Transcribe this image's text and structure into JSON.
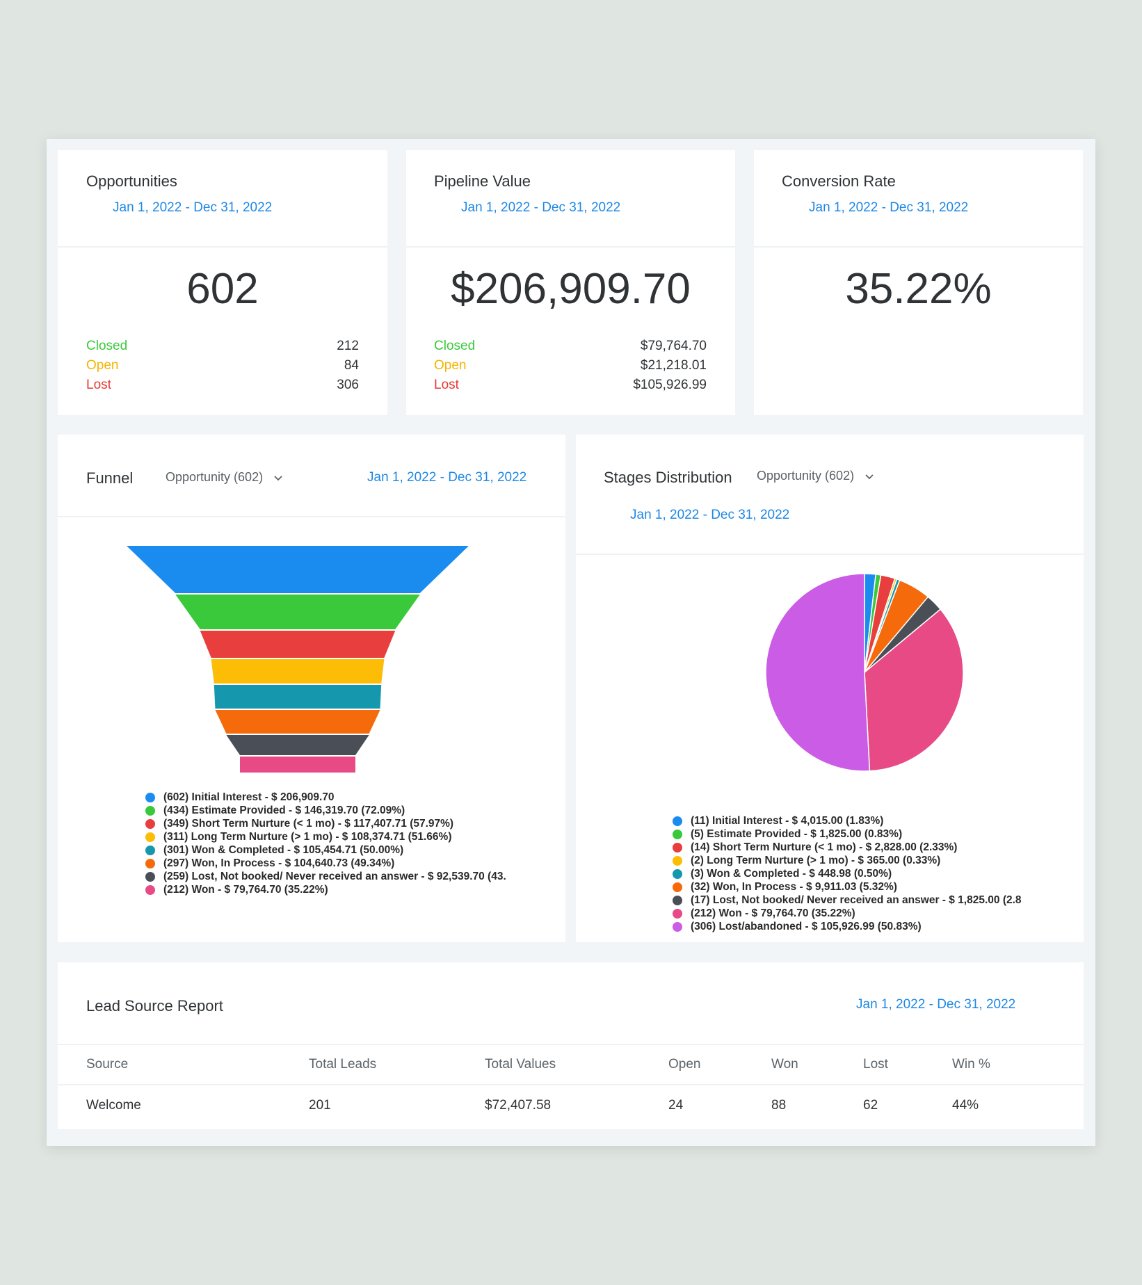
{
  "cards": {
    "opportunities": {
      "title": "Opportunities",
      "date": "Jan 1, 2022 - Dec 31, 2022",
      "value": "602",
      "closed_label": "Closed",
      "closed_value": "212",
      "open_label": "Open",
      "open_value": "84",
      "lost_label": "Lost",
      "lost_value": "306"
    },
    "pipeline": {
      "title": "Pipeline Value",
      "date": "Jan 1, 2022 - Dec 31, 2022",
      "value": "$206,909.70",
      "closed_label": "Closed",
      "closed_value": "$79,764.70",
      "open_label": "Open",
      "open_value": "$21,218.01",
      "lost_label": "Lost",
      "lost_value": "$105,926.99"
    },
    "conversion": {
      "title": "Conversion Rate",
      "date": "Jan 1, 2022 - Dec 31, 2022",
      "value": "35.22%"
    }
  },
  "funnel": {
    "title": "Funnel",
    "dropdown": "Opportunity (602)",
    "date": "Jan 1, 2022 - Dec 31, 2022",
    "legend": [
      "(602) Initial Interest - $ 206,909.70",
      "(434) Estimate Provided - $ 146,319.70 (72.09%)",
      "(349) Short Term Nurture (< 1 mo) - $ 117,407.71 (57.97%)",
      "(311) Long Term Nurture (> 1 mo) - $ 108,374.71 (51.66%)",
      "(301) Won & Completed - $ 105,454.71 (50.00%)",
      "(297) Won, In Process - $ 104,640.73 (49.34%)",
      "(259) Lost, Not booked/ Never received an answer - $ 92,539.70 (43.",
      "(212) Won - $ 79,764.70 (35.22%)"
    ]
  },
  "stages": {
    "title": "Stages Distribution",
    "dropdown": "Opportunity (602)",
    "date": "Jan 1, 2022 - Dec 31, 2022",
    "legend": [
      "(11) Initial Interest - $ 4,015.00 (1.83%)",
      "(5) Estimate Provided - $ 1,825.00 (0.83%)",
      "(14) Short Term Nurture (< 1 mo) - $ 2,828.00 (2.33%)",
      "(2) Long Term Nurture (> 1 mo) - $ 365.00 (0.33%)",
      "(3) Won & Completed - $ 448.98 (0.50%)",
      "(32) Won, In Process - $ 9,911.03 (5.32%)",
      "(17) Lost, Not booked/ Never received an answer - $ 1,825.00 (2.8",
      "(212) Won - $ 79,764.70 (35.22%)",
      "(306) Lost/abandoned - $ 105,926.99 (50.83%)"
    ]
  },
  "chart_data": [
    {
      "type": "funnel",
      "categories": [
        "Initial Interest",
        "Estimate Provided",
        "Short Term Nurture (< 1 mo)",
        "Long Term Nurture (> 1 mo)",
        "Won & Completed",
        "Won, In Process",
        "Lost, Not booked/ Never received an answer",
        "Won"
      ],
      "values": [
        602,
        434,
        349,
        311,
        301,
        297,
        259,
        212
      ],
      "colors": [
        "#1a8cf0",
        "#39c93b",
        "#e83e3e",
        "#fdbd07",
        "#1597ae",
        "#f56b0c",
        "#4a4f57",
        "#e84a85"
      ]
    },
    {
      "type": "pie",
      "categories": [
        "Initial Interest",
        "Estimate Provided",
        "Short Term Nurture (< 1 mo)",
        "Long Term Nurture (> 1 mo)",
        "Won & Completed",
        "Won, In Process",
        "Lost, Not booked/ Never received an answer",
        "Won",
        "Lost/abandoned"
      ],
      "values": [
        11,
        5,
        14,
        2,
        3,
        32,
        17,
        212,
        306
      ],
      "colors": [
        "#1a8cf0",
        "#39c93b",
        "#e83e3e",
        "#fdbd07",
        "#1597ae",
        "#f56b0c",
        "#4a4f57",
        "#e84a85",
        "#cb5ce6"
      ]
    }
  ],
  "lead_source": {
    "title": "Lead Source Report",
    "date": "Jan 1, 2022 - Dec 31, 2022",
    "headers": [
      "Source",
      "Total Leads",
      "Total Values",
      "Open",
      "Won",
      "Lost",
      "Win %"
    ],
    "rows": [
      [
        "Welcome",
        "201",
        "$72,407.58",
        "24",
        "88",
        "62",
        "44%"
      ]
    ]
  }
}
